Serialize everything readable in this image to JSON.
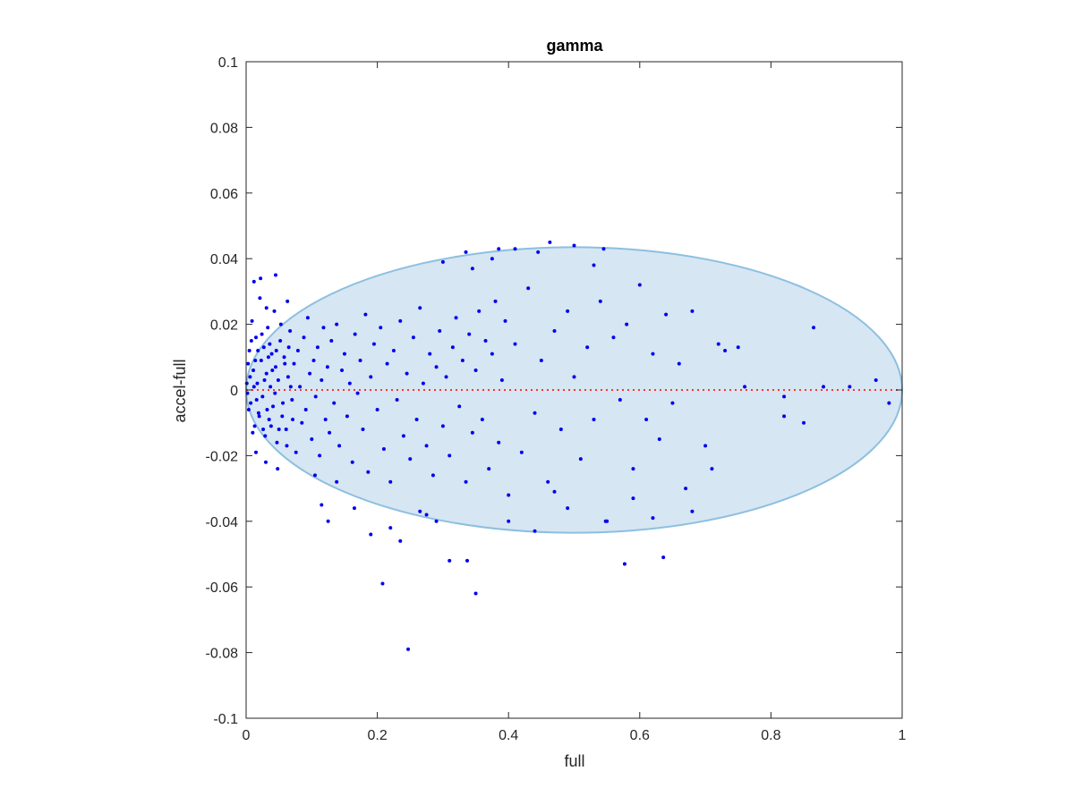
{
  "chart_data": {
    "type": "scatter",
    "title": "gamma",
    "xlabel": "full",
    "ylabel": "accel-full",
    "xlim": [
      0,
      1
    ],
    "ylim": [
      -0.1,
      0.1
    ],
    "xticks": [
      0,
      0.2,
      0.4,
      0.6,
      0.8,
      1
    ],
    "xtick_labels": [
      "0",
      "0.2",
      "0.4",
      "0.6",
      "0.8",
      "1"
    ],
    "yticks": [
      -0.1,
      -0.08,
      -0.06,
      -0.04,
      -0.02,
      0,
      0.02,
      0.04,
      0.06,
      0.08,
      0.1
    ],
    "ytick_labels": [
      "-0.1",
      "-0.08",
      "-0.06",
      "-0.04",
      "-0.02",
      "0",
      "0.02",
      "0.04",
      "0.06",
      "0.08",
      "0.1"
    ],
    "grid": false,
    "reference_line": {
      "y": 0,
      "style": "dotted",
      "color": "#ff3333"
    },
    "ellipse": {
      "cx": 0.5,
      "cy": 0,
      "rx": 0.5,
      "ry": 0.0435,
      "fill": "#d6e6f2",
      "stroke": "#8cbfe0"
    },
    "point_color": "#0000ee",
    "series": [
      {
        "points": [
          [
            0.005,
            0.012
          ],
          [
            0.007,
            -0.004
          ],
          [
            0.009,
            0.021
          ],
          [
            0.011,
            0.006
          ],
          [
            0.013,
            -0.011
          ],
          [
            0.015,
            0.016
          ],
          [
            0.017,
            0.002
          ],
          [
            0.019,
            -0.007
          ],
          [
            0.021,
            0.028
          ],
          [
            0.023,
            0.009
          ],
          [
            0.025,
            -0.002
          ],
          [
            0.027,
            0.013
          ],
          [
            0.029,
            -0.014
          ],
          [
            0.031,
            0.005
          ],
          [
            0.033,
            0.019
          ],
          [
            0.035,
            -0.009
          ],
          [
            0.037,
            0.001
          ],
          [
            0.039,
            0.011
          ],
          [
            0.041,
            -0.005
          ],
          [
            0.043,
            0.024
          ],
          [
            0.045,
            0.007
          ],
          [
            0.047,
            -0.016
          ],
          [
            0.049,
            0.003
          ],
          [
            0.052,
            0.015
          ],
          [
            0.055,
            -0.008
          ],
          [
            0.058,
            0.01
          ],
          [
            0.061,
            -0.012
          ],
          [
            0.064,
            0.004
          ],
          [
            0.067,
            0.018
          ],
          [
            0.07,
            -0.003
          ],
          [
            0.073,
            0.008
          ],
          [
            0.076,
            -0.019
          ],
          [
            0.079,
            0.012
          ],
          [
            0.082,
            0.001
          ],
          [
            0.085,
            -0.01
          ],
          [
            0.088,
            0.016
          ],
          [
            0.091,
            -0.006
          ],
          [
            0.094,
            0.022
          ],
          [
            0.097,
            0.005
          ],
          [
            0.1,
            -0.015
          ],
          [
            0.103,
            0.009
          ],
          [
            0.106,
            -0.002
          ],
          [
            0.109,
            0.013
          ],
          [
            0.112,
            -0.02
          ],
          [
            0.115,
            0.003
          ],
          [
            0.118,
            0.019
          ],
          [
            0.121,
            -0.009
          ],
          [
            0.124,
            0.007
          ],
          [
            0.127,
            -0.013
          ],
          [
            0.13,
            0.015
          ],
          [
            0.134,
            -0.004
          ],
          [
            0.138,
            0.02
          ],
          [
            0.142,
            -0.017
          ],
          [
            0.146,
            0.006
          ],
          [
            0.15,
            0.011
          ],
          [
            0.154,
            -0.008
          ],
          [
            0.158,
            0.002
          ],
          [
            0.162,
            -0.022
          ],
          [
            0.166,
            0.017
          ],
          [
            0.17,
            -0.001
          ],
          [
            0.174,
            0.009
          ],
          [
            0.178,
            -0.012
          ],
          [
            0.182,
            0.023
          ],
          [
            0.186,
            -0.025
          ],
          [
            0.19,
            0.004
          ],
          [
            0.195,
            0.014
          ],
          [
            0.2,
            -0.006
          ],
          [
            0.205,
            0.019
          ],
          [
            0.21,
            -0.018
          ],
          [
            0.215,
            0.008
          ],
          [
            0.22,
            -0.028
          ],
          [
            0.225,
            0.012
          ],
          [
            0.23,
            -0.003
          ],
          [
            0.235,
            0.021
          ],
          [
            0.24,
            -0.014
          ],
          [
            0.245,
            0.005
          ],
          [
            0.25,
            -0.021
          ],
          [
            0.255,
            0.016
          ],
          [
            0.26,
            -0.009
          ],
          [
            0.265,
            0.025
          ],
          [
            0.27,
            0.002
          ],
          [
            0.275,
            -0.017
          ],
          [
            0.28,
            0.011
          ],
          [
            0.285,
            -0.026
          ],
          [
            0.29,
            0.007
          ],
          [
            0.295,
            0.018
          ],
          [
            0.3,
            -0.011
          ],
          [
            0.305,
            0.004
          ],
          [
            0.31,
            -0.02
          ],
          [
            0.315,
            0.013
          ],
          [
            0.32,
            0.022
          ],
          [
            0.325,
            -0.005
          ],
          [
            0.33,
            0.009
          ],
          [
            0.335,
            -0.028
          ],
          [
            0.34,
            0.017
          ],
          [
            0.345,
            -0.013
          ],
          [
            0.35,
            0.006
          ],
          [
            0.355,
            0.024
          ],
          [
            0.36,
            -0.009
          ],
          [
            0.365,
            0.015
          ],
          [
            0.37,
            -0.024
          ],
          [
            0.375,
            0.011
          ],
          [
            0.38,
            0.027
          ],
          [
            0.385,
            -0.016
          ],
          [
            0.39,
            0.003
          ],
          [
            0.395,
            0.021
          ],
          [
            0.4,
            -0.032
          ],
          [
            0.41,
            0.014
          ],
          [
            0.42,
            -0.019
          ],
          [
            0.43,
            0.031
          ],
          [
            0.44,
            -0.007
          ],
          [
            0.45,
            0.009
          ],
          [
            0.46,
            -0.028
          ],
          [
            0.47,
            0.018
          ],
          [
            0.48,
            -0.012
          ],
          [
            0.49,
            0.024
          ],
          [
            0.5,
            0.004
          ],
          [
            0.51,
            -0.021
          ],
          [
            0.52,
            0.013
          ],
          [
            0.53,
            -0.009
          ],
          [
            0.54,
            0.027
          ],
          [
            0.55,
            -0.04
          ],
          [
            0.56,
            0.016
          ],
          [
            0.57,
            -0.003
          ],
          [
            0.58,
            0.02
          ],
          [
            0.59,
            -0.024
          ],
          [
            0.6,
            0.032
          ],
          [
            0.61,
            -0.009
          ],
          [
            0.62,
            0.011
          ],
          [
            0.63,
            -0.015
          ],
          [
            0.64,
            0.023
          ],
          [
            0.65,
            -0.004
          ],
          [
            0.66,
            0.008
          ],
          [
            0.67,
            -0.03
          ],
          [
            0.68,
            0.024
          ],
          [
            0.7,
            -0.017
          ],
          [
            0.71,
            -0.024
          ],
          [
            0.72,
            0.014
          ],
          [
            0.73,
            0.012
          ],
          [
            0.75,
            0.013
          ],
          [
            0.76,
            0.001
          ],
          [
            0.82,
            -0.002
          ],
          [
            0.82,
            -0.008
          ],
          [
            0.85,
            -0.01
          ],
          [
            0.865,
            0.019
          ],
          [
            0.88,
            0.001
          ],
          [
            0.92,
            0.001
          ],
          [
            0.96,
            0.003
          ],
          [
            0.98,
            -0.004
          ],
          [
            0.012,
            0.033
          ],
          [
            0.022,
            0.034
          ],
          [
            0.031,
            0.025
          ],
          [
            0.045,
            0.035
          ],
          [
            0.063,
            0.027
          ],
          [
            0.015,
            -0.019
          ],
          [
            0.03,
            -0.022
          ],
          [
            0.048,
            -0.024
          ],
          [
            0.105,
            -0.026
          ],
          [
            0.138,
            -0.028
          ],
          [
            0.115,
            -0.035
          ],
          [
            0.125,
            -0.04
          ],
          [
            0.165,
            -0.036
          ],
          [
            0.19,
            -0.044
          ],
          [
            0.22,
            -0.042
          ],
          [
            0.235,
            -0.046
          ],
          [
            0.208,
            -0.059
          ],
          [
            0.31,
            -0.052
          ],
          [
            0.337,
            -0.052
          ],
          [
            0.35,
            -0.062
          ],
          [
            0.247,
            -0.079
          ],
          [
            0.265,
            -0.037
          ],
          [
            0.275,
            -0.038
          ],
          [
            0.29,
            -0.04
          ],
          [
            0.3,
            0.039
          ],
          [
            0.335,
            0.042
          ],
          [
            0.345,
            0.037
          ],
          [
            0.375,
            0.04
          ],
          [
            0.385,
            0.043
          ],
          [
            0.41,
            0.043
          ],
          [
            0.445,
            0.042
          ],
          [
            0.463,
            0.045
          ],
          [
            0.5,
            0.044
          ],
          [
            0.53,
            0.038
          ],
          [
            0.545,
            0.043
          ],
          [
            0.44,
            -0.043
          ],
          [
            0.4,
            -0.04
          ],
          [
            0.577,
            -0.053
          ],
          [
            0.636,
            -0.051
          ],
          [
            0.68,
            -0.037
          ],
          [
            0.62,
            -0.039
          ],
          [
            0.548,
            -0.04
          ],
          [
            0.59,
            -0.033
          ],
          [
            0.47,
            -0.031
          ],
          [
            0.49,
            -0.036
          ],
          [
            0.001,
            0.002
          ],
          [
            0.002,
            -0.001
          ],
          [
            0.003,
            0.008
          ],
          [
            0.004,
            -0.006
          ],
          [
            0.006,
            0.004
          ],
          [
            0.008,
            0.015
          ],
          [
            0.01,
            -0.013
          ],
          [
            0.012,
            0.001
          ],
          [
            0.014,
            0.009
          ],
          [
            0.016,
            -0.003
          ],
          [
            0.018,
            0.012
          ],
          [
            0.02,
            -0.008
          ],
          [
            0.024,
            0.017
          ],
          [
            0.026,
            -0.012
          ],
          [
            0.028,
            0.003
          ],
          [
            0.032,
            -0.006
          ],
          [
            0.034,
            0.01
          ],
          [
            0.036,
            0.014
          ],
          [
            0.038,
            -0.011
          ],
          [
            0.04,
            0.006
          ],
          [
            0.044,
            -0.001
          ],
          [
            0.046,
            0.012
          ],
          [
            0.05,
            -0.012
          ],
          [
            0.053,
            0.02
          ],
          [
            0.056,
            -0.004
          ],
          [
            0.059,
            0.008
          ],
          [
            0.062,
            -0.017
          ],
          [
            0.065,
            0.013
          ],
          [
            0.068,
            0.001
          ],
          [
            0.071,
            -0.009
          ]
        ]
      }
    ]
  }
}
